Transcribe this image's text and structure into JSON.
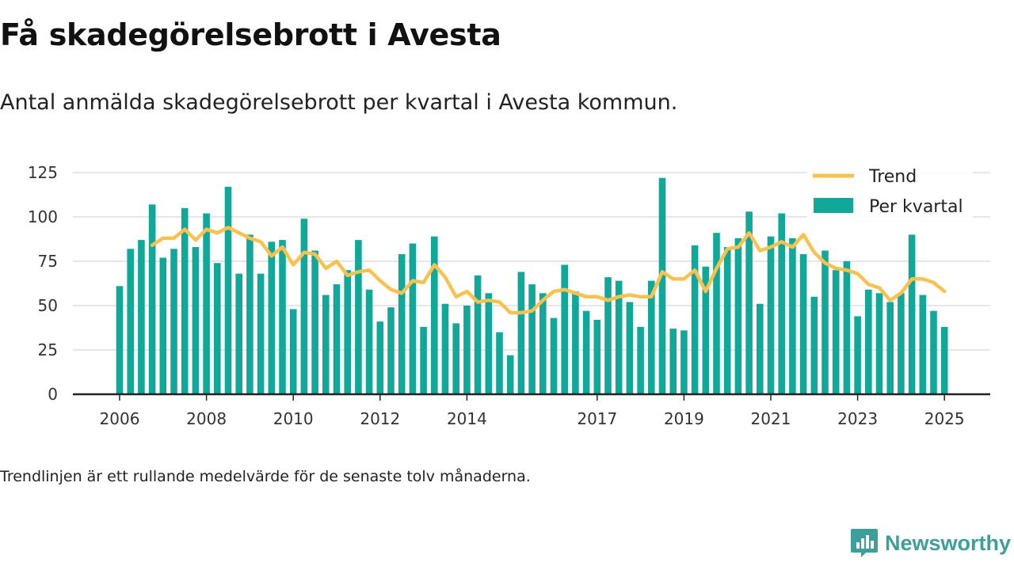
{
  "title": "Få skadegörelsebrott i Avesta",
  "subtitle": "Antal anmälda skadegörelsebrott per kvartal i Avesta kommun.",
  "footnote": "Trendlinjen är ett rullande medelvärde för de senaste tolv månaderna.",
  "brand": {
    "name": "Newsworthy"
  },
  "colors": {
    "bar": "#11a89a",
    "trend": "#f8c250",
    "axis": "#222222",
    "grid": "#dddddd",
    "brand": "#3e9f9a"
  },
  "chart_data": {
    "type": "bar",
    "title": "",
    "xlabel": "",
    "ylabel": "",
    "ylim": [
      0,
      125
    ],
    "yticks": [
      0,
      25,
      50,
      75,
      100,
      125
    ],
    "xticks": [
      "2006",
      "2008",
      "2010",
      "2012",
      "2014",
      "2017",
      "2019",
      "2021",
      "2023",
      "2025"
    ],
    "grid": true,
    "legend_position": "top-right",
    "x": [
      "2006 Q1",
      "2006 Q2",
      "2006 Q3",
      "2006 Q4",
      "2007 Q1",
      "2007 Q2",
      "2007 Q3",
      "2007 Q4",
      "2008 Q1",
      "2008 Q2",
      "2008 Q3",
      "2008 Q4",
      "2009 Q1",
      "2009 Q2",
      "2009 Q3",
      "2009 Q4",
      "2010 Q1",
      "2010 Q2",
      "2010 Q3",
      "2010 Q4",
      "2011 Q1",
      "2011 Q2",
      "2011 Q3",
      "2011 Q4",
      "2012 Q1",
      "2012 Q2",
      "2012 Q3",
      "2012 Q4",
      "2013 Q1",
      "2013 Q2",
      "2013 Q3",
      "2013 Q4",
      "2014 Q1",
      "2014 Q2",
      "2014 Q3",
      "2014 Q4",
      "2015 Q1",
      "2015 Q2",
      "2015 Q3",
      "2015 Q4",
      "2016 Q1",
      "2016 Q2",
      "2016 Q3",
      "2016 Q4",
      "2017 Q1",
      "2017 Q2",
      "2017 Q3",
      "2017 Q4",
      "2018 Q1",
      "2018 Q2",
      "2018 Q3",
      "2018 Q4",
      "2019 Q1",
      "2019 Q2",
      "2019 Q3",
      "2019 Q4",
      "2020 Q1",
      "2020 Q2",
      "2020 Q3",
      "2020 Q4",
      "2021 Q1",
      "2021 Q2",
      "2021 Q3",
      "2021 Q4",
      "2022 Q1",
      "2022 Q2",
      "2022 Q3",
      "2022 Q4",
      "2023 Q1",
      "2023 Q2",
      "2023 Q3",
      "2023 Q4",
      "2024 Q1",
      "2024 Q2",
      "2024 Q3",
      "2024 Q4",
      "2025 Q1"
    ],
    "series": [
      {
        "name": "Per kvartal",
        "type": "bar",
        "values": [
          61,
          82,
          87,
          107,
          77,
          82,
          105,
          83,
          102,
          74,
          117,
          68,
          90,
          68,
          86,
          87,
          48,
          99,
          81,
          56,
          62,
          70,
          87,
          59,
          41,
          49,
          79,
          85,
          38,
          89,
          51,
          40,
          50,
          67,
          57,
          35,
          22,
          69,
          62,
          57,
          43,
          73,
          58,
          47,
          42,
          66,
          64,
          52,
          38,
          64,
          122,
          37,
          36,
          84,
          72,
          91,
          83,
          88,
          103,
          51,
          89,
          102,
          88,
          79,
          55,
          81,
          70,
          75,
          44,
          59,
          57,
          52,
          57,
          90,
          56,
          47,
          38
        ]
      },
      {
        "name": "Trend",
        "type": "line",
        "values": [
          null,
          null,
          null,
          84,
          88,
          88,
          93,
          87,
          93,
          91,
          94,
          91,
          88,
          86,
          78,
          83,
          73,
          80,
          79,
          71,
          75,
          67,
          69,
          70,
          64,
          59,
          57,
          64,
          63,
          73,
          66,
          55,
          58,
          52,
          53,
          52,
          46,
          46,
          47,
          53,
          58,
          59,
          57,
          55,
          55,
          53,
          55,
          56,
          55,
          55,
          69,
          65,
          65,
          70,
          58,
          71,
          82,
          83,
          91,
          81,
          83,
          86,
          83,
          90,
          80,
          74,
          71,
          70,
          68,
          62,
          60,
          53,
          57,
          65,
          65,
          63,
          58
        ]
      }
    ]
  }
}
